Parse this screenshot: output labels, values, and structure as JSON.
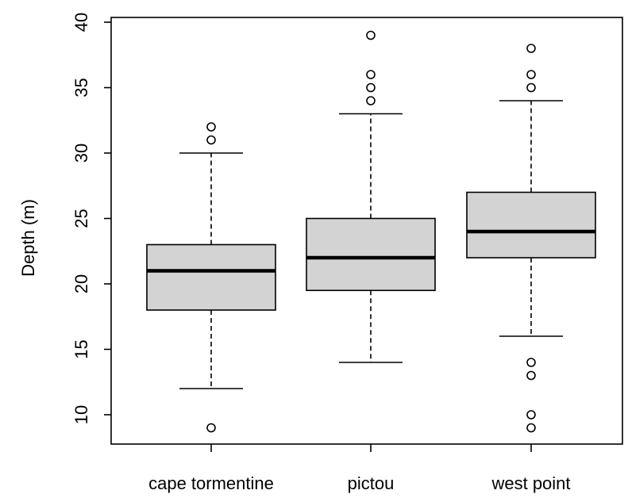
{
  "chart_data": {
    "type": "box",
    "title": "",
    "xlabel": "",
    "ylabel": "Depth (m)",
    "ylim": [
      8,
      40
    ],
    "yticks": [
      10,
      15,
      20,
      25,
      30,
      35,
      40
    ],
    "grid": false,
    "categories": [
      "cape tormentine",
      "pictou",
      "west point"
    ],
    "boxes": [
      {
        "category": "cape tormentine",
        "whisker_low": 12,
        "q1": 18,
        "median": 21,
        "q3": 23,
        "whisker_high": 30,
        "outliers": [
          9,
          31,
          32
        ]
      },
      {
        "category": "pictou",
        "whisker_low": 14,
        "q1": 19.5,
        "median": 22,
        "q3": 25,
        "whisker_high": 33,
        "outliers": [
          34,
          35,
          36,
          39
        ]
      },
      {
        "category": "west point",
        "whisker_low": 16,
        "q1": 22,
        "median": 24,
        "q3": 27,
        "whisker_high": 34,
        "outliers": [
          9,
          10,
          13,
          14,
          35,
          36,
          38
        ]
      }
    ]
  }
}
